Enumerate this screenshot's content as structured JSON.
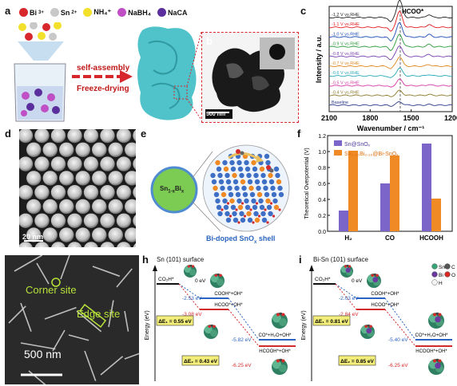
{
  "panels": {
    "a": "a",
    "b": "b",
    "c": "c",
    "d": "d",
    "e": "e",
    "f": "f",
    "g": "g",
    "h": "h",
    "i": "i"
  },
  "panel_a": {
    "legend": [
      {
        "label": "Bi",
        "sup": "3+",
        "color": "#d7262c"
      },
      {
        "label": "Sn",
        "sup": "2+",
        "color": "#c8c8c8"
      },
      {
        "label": "NH₄⁺",
        "sup": "",
        "color": "#f2e02b"
      },
      {
        "label": "NaBH₄",
        "sup": "",
        "color": "#c04fc6"
      },
      {
        "label": "NaCA",
        "sup": "",
        "color": "#5a2e9c"
      }
    ],
    "arrow_line1": "self-assembly",
    "arrow_line2": "Freeze-drying"
  },
  "panel_b": {
    "scale": "500 nm"
  },
  "panel_c": {
    "annotation": "HCOO*",
    "ylabel": "Intensity / a.u.",
    "xlabel": "Wavenumber / cm⁻¹",
    "xticks": [
      "2100",
      "1800",
      "1500",
      "1200"
    ],
    "traces": [
      {
        "label": "-1.2 V vs.RHE",
        "color": "#222222"
      },
      {
        "label": "-1.1 V vs.RHE",
        "color": "#e31a1c"
      },
      {
        "label": "-1.0 V vs.RHE",
        "color": "#1f4fb4"
      },
      {
        "label": "-0.9 V vs.RHE",
        "color": "#2b9a3c"
      },
      {
        "label": "-0.8 V vs.RHE",
        "color": "#7b3fb0"
      },
      {
        "label": "-0.7 V vs.RHE",
        "color": "#e08a1e"
      },
      {
        "label": "-0.6 V vs.RHE",
        "color": "#27a8b8"
      },
      {
        "label": "-0.5 V vs.RHE",
        "color": "#d63aa8"
      },
      {
        "label": "-0.4 V vs.RHE",
        "color": "#8a7a2a"
      },
      {
        "label": "Baseline",
        "color": "#2a3a8a"
      }
    ]
  },
  "panel_d": {
    "scale": "20 nm"
  },
  "panel_e": {
    "core_main": "Sn",
    "core_sub": "1-x",
    "core_main2": "Bi",
    "core_sub2": "x",
    "shell_text": "Bi-doped SnO",
    "shell_sub": "x",
    "shell_tail": " shell"
  },
  "panel_f": {
    "ylabel": "Theoretical Overpotential (V)"
  },
  "chart_data": {
    "type": "bar",
    "categories": [
      "H₂",
      "CO",
      "HCOOH"
    ],
    "series": [
      {
        "name": "Sn@SnOₓ",
        "color": "#7b65c8",
        "values": [
          0.26,
          0.6,
          1.1
        ]
      },
      {
        "name": "Sn₀.₉₀Bi₀.₁₀@Bi-SnOₓ",
        "color": "#f08a24",
        "values": [
          1.01,
          0.95,
          0.41
        ]
      }
    ],
    "ylim": [
      0,
      1.2
    ],
    "ylabel": "Theoretical Overpotential (V)"
  },
  "panel_g": {
    "corner": "Corner site",
    "edge": "Edge site",
    "scale": "500 nm"
  },
  "panel_h": {
    "title": "Sn (101) surface",
    "ylabel": "Energy (eV)",
    "co2h": "CO₂H*",
    "zero": "0 eV",
    "cooh": "COOH*+OH*",
    "hcoo": "HCOO*+OH*",
    "co": "CO*+H₂O+OH*",
    "hcooh": "HCOOH*+OH*",
    "e1": "-2.53 eV",
    "e2": "-3.08 eV",
    "e3": "-5.82 eV",
    "e4": "-6.25 eV",
    "de1": "ΔE₁ = 0.55 eV",
    "de2": "ΔE₂ = 0.43 eV"
  },
  "panel_i": {
    "title": "Bi-Sn (101) surface",
    "ylabel": "Energy (eV)",
    "co2h": "CO₂H*",
    "zero": "0 eV",
    "cooh": "COOH*+OH*",
    "hcoo": "HCOO*+OH*",
    "co": "CO*+H₂O+OH*",
    "hcooh": "HCOOH*+OH*",
    "e1": "-2.03 eV",
    "e2": "-2.84 eV",
    "e3": "-5.40 eV",
    "e4": "-6.25 eV",
    "de1": "ΔE₁ = 0.81 eV",
    "de2": "ΔE₂ = 0.85 eV",
    "legend": [
      {
        "label": "Sn",
        "color": "#3aa37a"
      },
      {
        "label": "C",
        "color": "#555555"
      },
      {
        "label": "Bi",
        "color": "#6a3aa0"
      },
      {
        "label": "O",
        "color": "#d42a2a"
      },
      {
        "label": "H",
        "color": "#f4f4f4"
      }
    ]
  }
}
